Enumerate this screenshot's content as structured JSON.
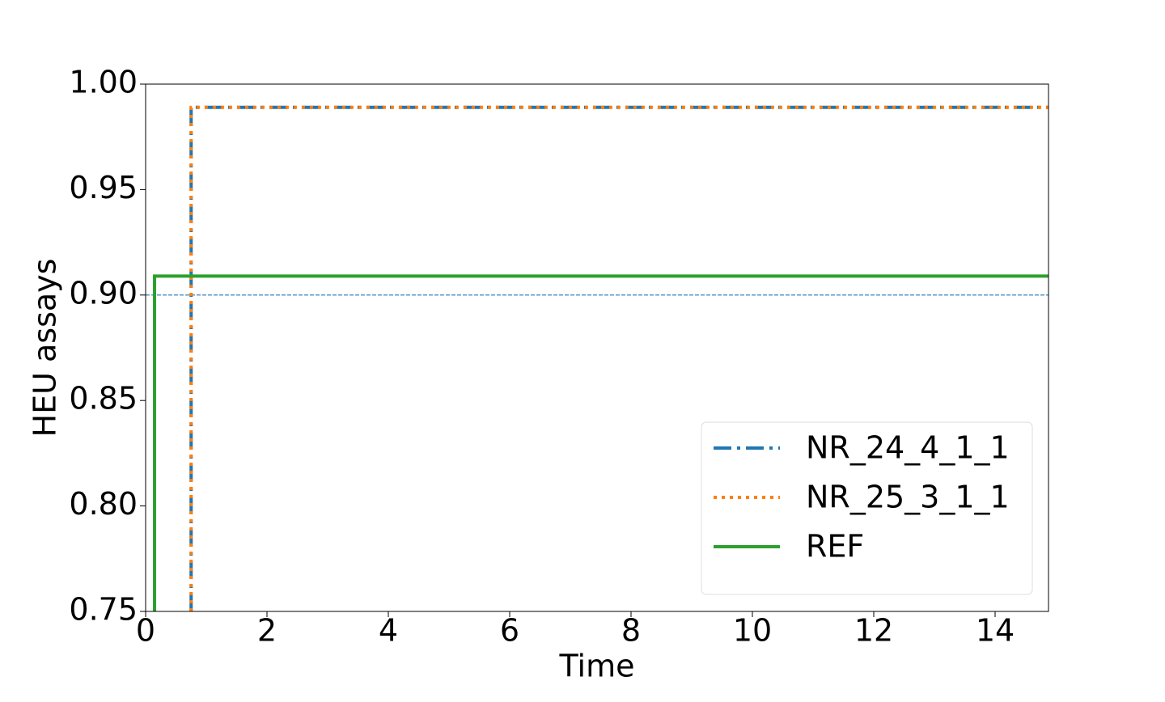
{
  "chart_data": {
    "type": "line",
    "xlabel": "Time",
    "ylabel": "HEU assays",
    "xlim": [
      0,
      14.88
    ],
    "xticks": [
      0,
      2,
      4,
      6,
      8,
      10,
      12,
      14
    ],
    "ylim": [
      0.75,
      1.0
    ],
    "yticks": [
      {
        "value": 0.75,
        "label": "0.75"
      },
      {
        "value": 0.8,
        "label": "0.80"
      },
      {
        "value": 0.85,
        "label": "0.85"
      },
      {
        "value": 0.9,
        "label": "0.90"
      },
      {
        "value": 0.95,
        "label": "0.95"
      },
      {
        "value": 1.0,
        "label": "1.00"
      }
    ],
    "hline": {
      "value": 0.9,
      "color": "#1f77b4"
    },
    "legend": "lower right",
    "series": [
      {
        "name": "NR_24_4_1_1",
        "color": "#1f77b4",
        "style": "dashdot",
        "x": [
          0.75,
          0.75,
          14.88
        ],
        "values": [
          0.75,
          0.989,
          0.989
        ]
      },
      {
        "name": "NR_25_3_1_1",
        "color": "#ff7f0e",
        "style": "dotted",
        "x": [
          0.75,
          0.75,
          14.88
        ],
        "values": [
          0.75,
          0.989,
          0.989
        ]
      },
      {
        "name": "REF",
        "color": "#2ca02c",
        "style": "solid",
        "x": [
          0.147,
          0.147,
          14.88
        ],
        "values": [
          0.75,
          0.909,
          0.909
        ]
      }
    ]
  }
}
